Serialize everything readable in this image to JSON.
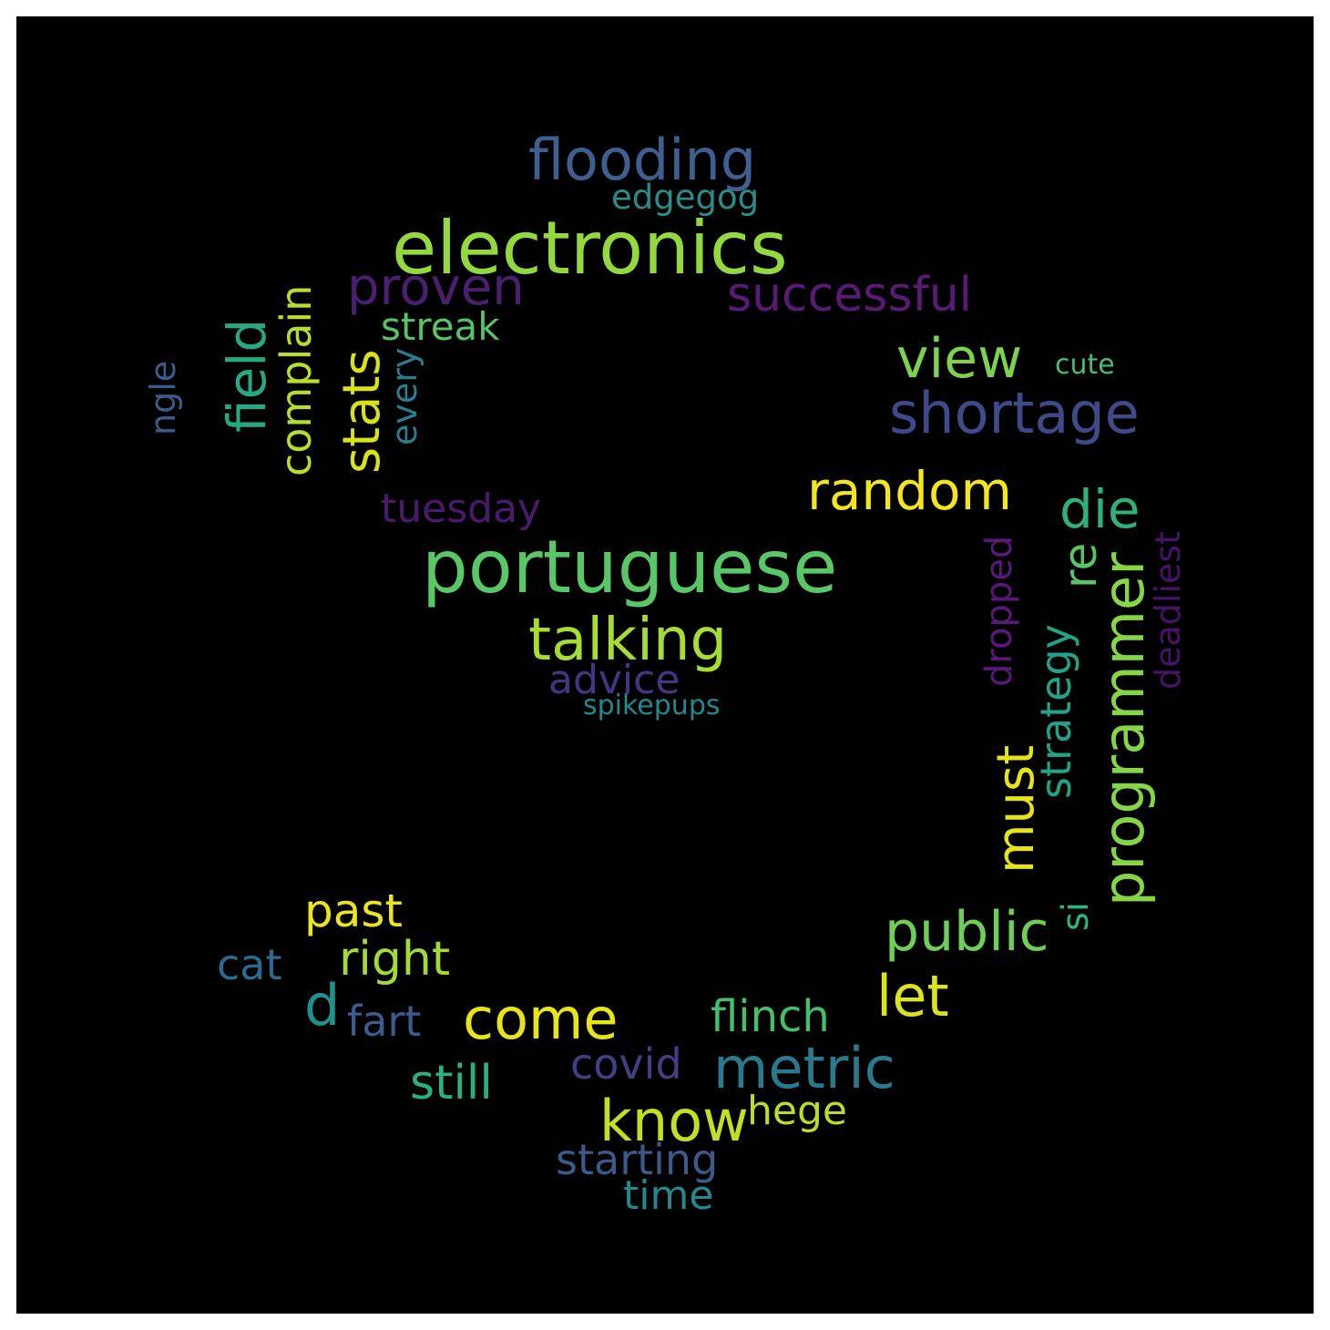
{
  "background": "#000000",
  "frame": "#ffffff",
  "words": [
    {
      "id": "flooding",
      "text": "flooding",
      "color": "#3e5f8f",
      "rotated": false
    },
    {
      "id": "edgegog",
      "text": "edgegog",
      "color": "#2b8d8a",
      "rotated": false
    },
    {
      "id": "electronics",
      "text": "electronics",
      "color": "#94d840",
      "rotated": false
    },
    {
      "id": "proven",
      "text": "proven",
      "color": "#4a1f6e",
      "rotated": false
    },
    {
      "id": "successful",
      "text": "successful",
      "color": "#5a1a76",
      "rotated": false
    },
    {
      "id": "streak",
      "text": "streak",
      "color": "#58c266",
      "rotated": false
    },
    {
      "id": "view",
      "text": "view",
      "color": "#7dd250",
      "rotated": false
    },
    {
      "id": "cute",
      "text": "cute",
      "color": "#4cbc6c",
      "rotated": false
    },
    {
      "id": "shortage",
      "text": "shortage",
      "color": "#3f4a8a",
      "rotated": false
    },
    {
      "id": "ngle",
      "text": "ngle",
      "color": "#3b5c8b",
      "rotated": true
    },
    {
      "id": "field",
      "text": "field",
      "color": "#27a884",
      "rotated": true
    },
    {
      "id": "complain",
      "text": "complain",
      "color": "#b6de2b",
      "rotated": true
    },
    {
      "id": "stats",
      "text": "stats",
      "color": "#d8e219",
      "rotated": true
    },
    {
      "id": "every",
      "text": "every",
      "color": "#2b7c8e",
      "rotated": true
    },
    {
      "id": "tuesday",
      "text": "tuesday",
      "color": "#4b1a6c",
      "rotated": false
    },
    {
      "id": "random",
      "text": "random",
      "color": "#f3e51e",
      "rotated": false
    },
    {
      "id": "die",
      "text": "die",
      "color": "#2eb27c",
      "rotated": false
    },
    {
      "id": "portuguese",
      "text": "portuguese",
      "color": "#59c667",
      "rotated": false
    },
    {
      "id": "re",
      "text": "re",
      "color": "#58c567",
      "rotated": true
    },
    {
      "id": "dropped",
      "text": "dropped",
      "color": "#5b177a",
      "rotated": true
    },
    {
      "id": "deadliest",
      "text": "deadliest",
      "color": "#471366",
      "rotated": true
    },
    {
      "id": "talking",
      "text": "talking",
      "color": "#a6dc33",
      "rotated": false
    },
    {
      "id": "advice",
      "text": "advice",
      "color": "#453583",
      "rotated": false
    },
    {
      "id": "spikepups",
      "text": "spikepups",
      "color": "#23898e",
      "rotated": false
    },
    {
      "id": "programmer",
      "text": "programmer",
      "color": "#86d547",
      "rotated": true
    },
    {
      "id": "strategy",
      "text": "strategy",
      "color": "#22a287",
      "rotated": true
    },
    {
      "id": "must",
      "text": "must",
      "color": "#e4e419",
      "rotated": true
    },
    {
      "id": "past",
      "text": "past",
      "color": "#ece51b",
      "rotated": false
    },
    {
      "id": "public",
      "text": "public",
      "color": "#6ece58",
      "rotated": false
    },
    {
      "id": "si",
      "text": "si",
      "color": "#2fb47c",
      "rotated": true
    },
    {
      "id": "cat",
      "text": "cat",
      "color": "#2b6c8e",
      "rotated": false
    },
    {
      "id": "right",
      "text": "right",
      "color": "#a2da37",
      "rotated": false
    },
    {
      "id": "d",
      "text": "d",
      "color": "#21918c",
      "rotated": false
    },
    {
      "id": "fart",
      "text": "fart",
      "color": "#3b5d8d",
      "rotated": false
    },
    {
      "id": "come",
      "text": "come",
      "color": "#e7e419",
      "rotated": false
    },
    {
      "id": "let",
      "text": "let",
      "color": "#dbe31a",
      "rotated": false
    },
    {
      "id": "flinch",
      "text": "flinch",
      "color": "#46bf6b",
      "rotated": false
    },
    {
      "id": "covid",
      "text": "covid",
      "color": "#424085",
      "rotated": false
    },
    {
      "id": "metric",
      "text": "metric",
      "color": "#2a7a8e",
      "rotated": false
    },
    {
      "id": "still",
      "text": "still",
      "color": "#2bb07f",
      "rotated": false
    },
    {
      "id": "know",
      "text": "know",
      "color": "#c2df23",
      "rotated": false
    },
    {
      "id": "hege",
      "text": "hege",
      "color": "#b8de29",
      "rotated": false
    },
    {
      "id": "starting",
      "text": "starting",
      "color": "#3c598c",
      "rotated": false
    },
    {
      "id": "time",
      "text": "time",
      "color": "#23898e",
      "rotated": false
    }
  ]
}
